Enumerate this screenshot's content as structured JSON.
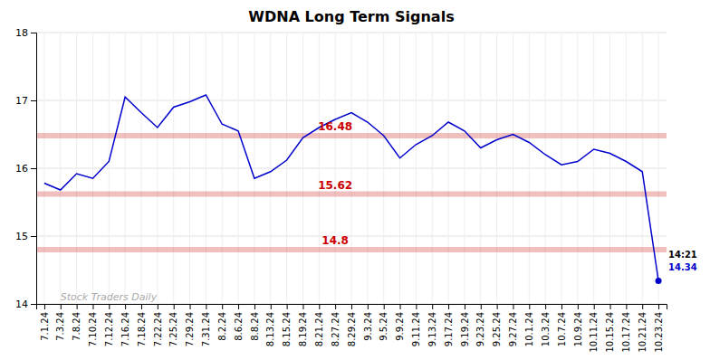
{
  "chart_data": {
    "type": "line",
    "title": "WDNA Long Term Signals",
    "color": "#0000cc",
    "categories": [
      "7.1.24",
      "7.3.24",
      "7.8.24",
      "7.10.24",
      "7.12.24",
      "7.16.24",
      "7.18.24",
      "7.22.24",
      "7.25.24",
      "7.29.24",
      "7.31.24",
      "8.2.24",
      "8.6.24",
      "8.8.24",
      "8.13.24",
      "8.15.24",
      "8.19.24",
      "8.21.24",
      "8.27.24",
      "8.29.24",
      "9.3.24",
      "9.5.24",
      "9.9.24",
      "9.11.24",
      "9.13.24",
      "9.17.24",
      "9.19.24",
      "9.23.24",
      "9.25.24",
      "9.27.24",
      "10.1.24",
      "10.3.24",
      "10.7.24",
      "10.9.24",
      "10.11.24",
      "10.15.24",
      "10.17.24",
      "10.21.24",
      "10.23.24"
    ],
    "values": [
      15.78,
      15.68,
      15.92,
      15.85,
      16.1,
      17.05,
      16.82,
      16.6,
      16.9,
      16.98,
      17.08,
      16.65,
      16.55,
      15.85,
      15.95,
      16.12,
      16.45,
      16.6,
      16.72,
      16.82,
      16.68,
      16.48,
      16.15,
      16.35,
      16.48,
      16.68,
      16.55,
      16.3,
      16.42,
      16.5,
      16.38,
      16.2,
      16.05,
      16.1,
      16.28,
      16.22,
      16.1,
      15.95,
      14.34
    ],
    "ylim": [
      14.0,
      18.0
    ],
    "yticks": [
      14,
      15,
      16,
      17,
      18
    ],
    "grid": true,
    "hlines": [
      {
        "value": 16.48,
        "label": "16.48",
        "color": "#cc0000",
        "x": "8.27.24"
      },
      {
        "value": 15.62,
        "label": "15.62",
        "color": "#cc0000",
        "x": "8.27.24"
      },
      {
        "value": 14.8,
        "label": "14.8",
        "color": "#cc0000",
        "x": "8.27.24"
      }
    ],
    "annotations": [
      {
        "text": "14:21",
        "color": "#000000"
      },
      {
        "text": "14.34",
        "color": "#0000cc"
      },
      {
        "text": "Stock Traders Daily",
        "color": "#aaaaaa"
      }
    ]
  }
}
